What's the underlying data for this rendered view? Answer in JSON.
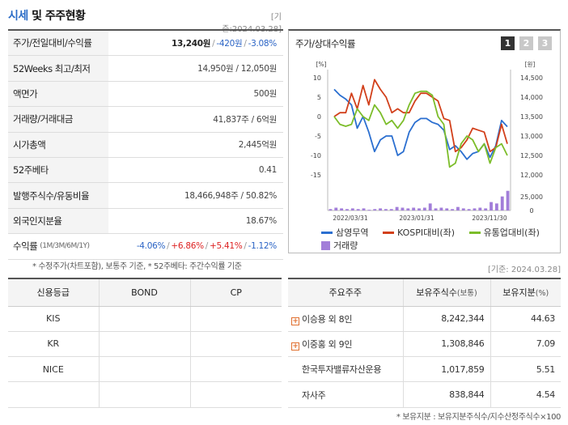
{
  "header": {
    "title_highlight": "시세",
    "title_rest": " 및 주주현황",
    "base_date": "[기준:2024.03.28]"
  },
  "price_table": {
    "rows": [
      {
        "label": "주가/전일대비/수익률"
      },
      {
        "label": "52Weeks 최고/최저",
        "value": "14,950원 / 12,050원"
      },
      {
        "label": "액면가",
        "value": "500원"
      },
      {
        "label": "거래량/거래대금",
        "value": "41,837주 / 6억원"
      },
      {
        "label": "시가총액",
        "value": "2,445억원"
      },
      {
        "label": "52주베타",
        "value": "0.41"
      },
      {
        "label": "발행주식수/유동비율",
        "value": "18,466,948주 / 50.82%"
      },
      {
        "label": "외국인지분율",
        "value": "18.67%"
      }
    ],
    "price": "13,240원",
    "change": "-420원",
    "change_pct": "-3.08%",
    "returns_label": "수익률",
    "returns_periods": "(1M/3M/6M/1Y)",
    "returns": [
      "-4.06%",
      "+6.86%",
      "+5.41%",
      "-1.12%"
    ]
  },
  "footnote1": "* 수정주가(차트포함), 보통주 기준, * 52주베타: 주간수익률 기준",
  "chart_panel": {
    "title": "주가/상대수익률",
    "pages": [
      "1",
      "2",
      "3"
    ],
    "active_page": 0
  },
  "chart_data": {
    "type": "line",
    "left_axis_unit": "[%]",
    "right_axis_unit": "[원]",
    "left_ticks": [
      10,
      5,
      0,
      -5,
      -10,
      -15
    ],
    "right_ticks": [
      "14,500",
      "14,000",
      "13,500",
      "13,000",
      "12,500",
      "12,000"
    ],
    "volume_ticks": [
      "25,000",
      "0"
    ],
    "x_ticks": [
      "2022/03/31",
      "2023/01/31",
      "2023/11/30"
    ],
    "left_range": [
      -15,
      10
    ],
    "right_range": [
      12000,
      14500
    ],
    "series": [
      {
        "name": "삼영무역",
        "color": "#2b6fd0",
        "axis": "right",
        "values": [
          14200,
          14050,
          13950,
          13800,
          13200,
          13500,
          13100,
          12600,
          12900,
          13000,
          13000,
          12500,
          12600,
          13100,
          13350,
          13450,
          13450,
          13350,
          13300,
          13150,
          12650,
          12750,
          12600,
          12400,
          12550,
          12600,
          12800,
          12450,
          12750,
          13400,
          13240
        ]
      },
      {
        "name": "KOSPI대비(좌)",
        "color": "#d2401b",
        "axis": "left",
        "values": [
          0,
          1,
          1,
          6,
          2,
          8,
          3,
          9.5,
          7,
          5,
          1,
          2,
          1,
          1,
          4,
          6,
          6,
          5,
          4,
          -0.5,
          -1,
          -9,
          -8,
          -6,
          -3,
          -3.5,
          -4,
          -9,
          -8,
          -2,
          -7
        ]
      },
      {
        "name": "유통업대비(좌)",
        "color": "#7cbd2a",
        "axis": "left",
        "values": [
          0,
          -2,
          -2.5,
          -2,
          2,
          0,
          -1,
          3,
          1,
          -2,
          -1,
          -3,
          -1,
          3,
          6,
          6.5,
          6.5,
          5.5,
          0,
          -2,
          -13,
          -12,
          -7,
          -5,
          -6,
          -9,
          -7,
          -12,
          -8,
          -7,
          -10
        ]
      }
    ],
    "volume": {
      "name": "거래량",
      "color": "#a27ed9",
      "values": [
        2,
        4,
        3,
        2,
        3,
        2,
        3,
        1,
        2,
        3,
        2,
        2,
        5,
        4,
        3,
        4,
        3,
        4,
        10,
        3,
        4,
        3,
        2,
        5,
        3,
        2,
        3,
        4,
        3,
        12,
        10,
        20,
        28
      ]
    }
  },
  "base_date2": "[기준: 2024.03.28]",
  "credit_table": {
    "headers": [
      "신용등급",
      "BOND",
      "CP"
    ],
    "rows": [
      [
        "KIS",
        "",
        ""
      ],
      [
        "KR",
        "",
        ""
      ],
      [
        "NICE",
        "",
        ""
      ]
    ]
  },
  "shareholder_table": {
    "headers": [
      "주요주주",
      "보유주식수",
      "(보통)",
      "보유지분",
      "(%)"
    ],
    "rows": [
      {
        "name": "이승용 외 8인",
        "shares": "8,242,344",
        "pct": "44.63",
        "expand": true
      },
      {
        "name": "이중홍 외 9인",
        "shares": "1,308,846",
        "pct": "7.09",
        "expand": true
      },
      {
        "name": "한국투자밸류자산운용",
        "shares": "1,017,859",
        "pct": "5.51",
        "expand": false
      },
      {
        "name": "자사주",
        "shares": "838,844",
        "pct": "4.54",
        "expand": false
      }
    ]
  },
  "footnote2": "* 보유지분 : 보유지분주식수/지수산정주식수×100"
}
